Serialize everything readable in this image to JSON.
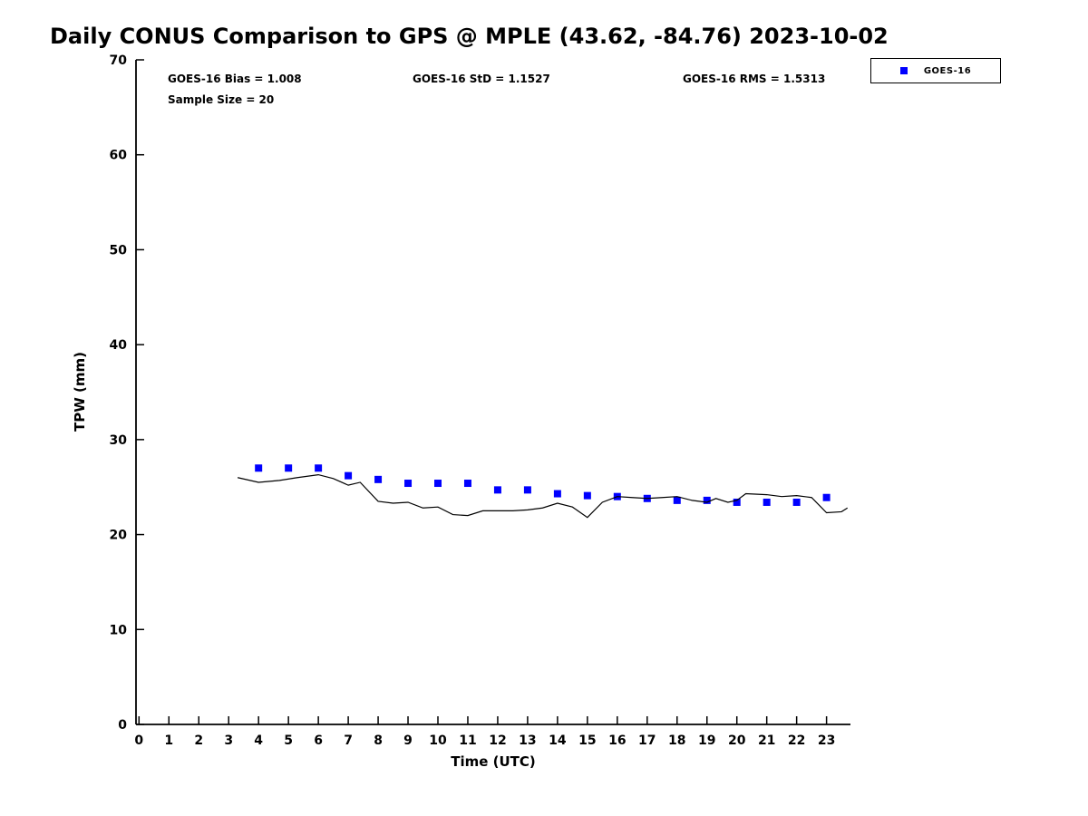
{
  "stats": {
    "bias": "GOES-16 Bias = 1.008",
    "std": "GOES-16 StD = 1.1527",
    "rms": "GOES-16 RMS = 1.5313",
    "sample_size": "Sample Size = 20"
  },
  "legend": {
    "label": "GOES-16",
    "marker_color": "#0000ff",
    "position": "top-right"
  },
  "chart_data": {
    "type": "scatter",
    "title": "Daily CONUS Comparison to GPS @ MPLE (43.62, -84.76) 2023-10-02",
    "xlabel": "Time (UTC)",
    "ylabel": "TPW (mm)",
    "xlim": [
      -0.1,
      23.8
    ],
    "ylim": [
      0,
      70
    ],
    "xticks": [
      0,
      1,
      2,
      3,
      4,
      5,
      6,
      7,
      8,
      9,
      10,
      11,
      12,
      13,
      14,
      15,
      16,
      17,
      18,
      19,
      20,
      21,
      22,
      23
    ],
    "yticks": [
      0,
      10,
      20,
      30,
      40,
      50,
      60,
      70
    ],
    "grid": false,
    "series": [
      {
        "name": "GOES-16",
        "type": "scatter",
        "marker": "square",
        "color": "#0000ff",
        "x": [
          4,
          5,
          6,
          7,
          8,
          9,
          10,
          11,
          12,
          13,
          14,
          15,
          16,
          17,
          18,
          19,
          20,
          21,
          22,
          23
        ],
        "y": [
          27.0,
          27.0,
          27.0,
          26.2,
          25.8,
          25.4,
          25.4,
          25.4,
          24.7,
          24.7,
          24.3,
          24.1,
          24.0,
          23.8,
          23.6,
          23.6,
          23.4,
          23.4,
          23.4,
          23.9
        ]
      },
      {
        "name": "GPS",
        "type": "line",
        "color": "#000000",
        "x": [
          3.3,
          4.0,
          4.7,
          5.3,
          6.0,
          6.5,
          7.0,
          7.4,
          8.0,
          8.5,
          9.0,
          9.5,
          10.0,
          10.5,
          11.0,
          11.5,
          12.0,
          12.5,
          13.0,
          13.5,
          14.0,
          14.5,
          15.0,
          15.5,
          16.0,
          16.5,
          17.0,
          17.5,
          18.0,
          18.5,
          19.0,
          19.3,
          19.7,
          20.0,
          20.3,
          21.0,
          21.5,
          22.0,
          22.5,
          23.0,
          23.5,
          23.7
        ],
        "y": [
          26.0,
          25.5,
          25.7,
          26.0,
          26.3,
          25.9,
          25.2,
          25.5,
          23.5,
          23.3,
          23.4,
          22.8,
          22.9,
          22.1,
          22.0,
          22.5,
          22.5,
          22.5,
          22.6,
          22.8,
          23.3,
          22.9,
          21.8,
          23.4,
          24.0,
          23.9,
          23.8,
          23.9,
          24.0,
          23.6,
          23.4,
          23.8,
          23.4,
          23.6,
          24.3,
          24.2,
          24.0,
          24.1,
          23.9,
          22.3,
          22.4,
          22.8
        ]
      }
    ]
  }
}
